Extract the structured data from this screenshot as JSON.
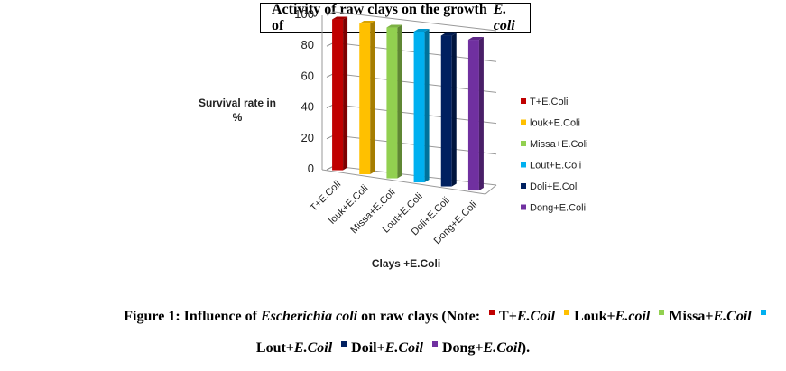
{
  "chart_data": {
    "type": "bar",
    "style": "3d-column",
    "title": "Activity of raw clays on the growth of E. coli",
    "title_plain": "Activity of raw clays on the growth of ",
    "title_italic": "E. coli",
    "xlabel": "Clays +E.Coli",
    "ylabel_line1": "Survival rate in",
    "ylabel_line2": "%",
    "ylim": [
      0,
      100
    ],
    "yticks": [
      0,
      20,
      40,
      60,
      80,
      100
    ],
    "grid": true,
    "legend_position": "right",
    "categories": [
      "T+E.Coli",
      "louk+E.Coli",
      "Missa+E.Coli",
      "Lout+E.Coli",
      "Doli+E.Coli",
      "Dong+E.Coli"
    ],
    "series": [
      {
        "name": "T+E.Coli",
        "color": "#C00000",
        "values": [
          100,
          null,
          null,
          null,
          null,
          null
        ]
      },
      {
        "name": "louk+E.Coli",
        "color": "#FFC000",
        "values": [
          null,
          100,
          null,
          null,
          null,
          null
        ]
      },
      {
        "name": "Missa+E.Coli",
        "color": "#92D050",
        "values": [
          null,
          null,
          100,
          null,
          null,
          null
        ]
      },
      {
        "name": "Lout+E.Coli",
        "color": "#00B0F0",
        "values": [
          null,
          null,
          null,
          100,
          null,
          null
        ]
      },
      {
        "name": "Doli+E.Coli",
        "color": "#002060",
        "values": [
          null,
          null,
          null,
          null,
          100,
          null
        ]
      },
      {
        "name": "Dong+E.Coli",
        "color": "#7030A0",
        "values": [
          null,
          null,
          null,
          null,
          null,
          100
        ]
      }
    ],
    "values": [
      100,
      100,
      100,
      100,
      100,
      100
    ]
  },
  "caption": {
    "line1_a": "Figure 1: Influence of ",
    "line1_b": "Escherichia coli",
    "line1_c": " on raw clays (Note: ",
    "items": [
      {
        "plain": "T+",
        "italic": "E.Coil",
        "color": "#C00000"
      },
      {
        "plain": "Louk+",
        "italic": "E.coil",
        "color": "#FFC000"
      },
      {
        "plain": "Missa+",
        "italic": "E.Coil",
        "color": "#92D050"
      },
      {
        "plain": "Lout+",
        "italic": "E.Coil",
        "color": "#00B0F0"
      },
      {
        "plain": "Doil+",
        "italic": "E.Coil",
        "color": "#002060"
      },
      {
        "plain": "Dong+",
        "italic": "E.Coil",
        "color": "#7030A0"
      }
    ],
    "end": ")."
  }
}
